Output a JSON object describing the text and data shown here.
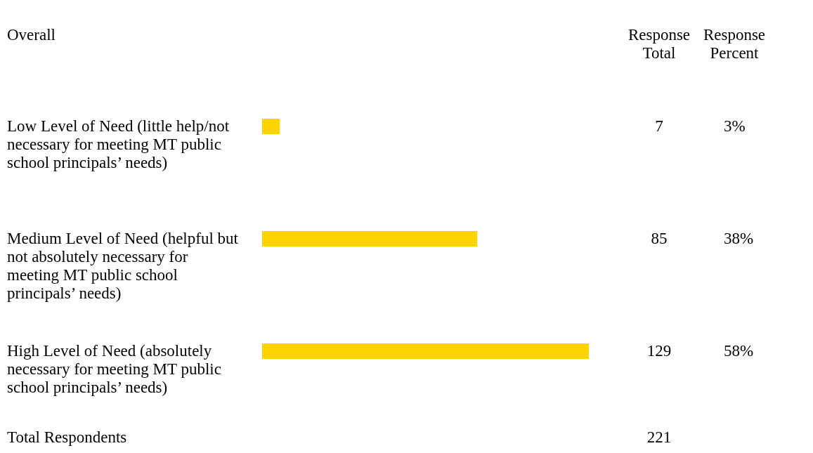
{
  "chart_data": {
    "type": "bar",
    "orientation": "horizontal",
    "title": "Overall",
    "categories": [
      "Low Level of Need (little help/not necessary for meeting MT public school principals’ needs)",
      "Medium Level of Need (helpful but not absolutely necessary for meeting MT public school principals’ needs)",
      "High Level of Need (absolutely necessary for meeting MT public school principals’ needs)"
    ],
    "values": [
      7,
      85,
      129
    ],
    "color": "#ffd400",
    "data_labels": true,
    "annotations": [
      "Response Total",
      "Response Percent",
      "3%",
      "38%",
      "58%",
      "Total Respondents",
      "221"
    ]
  }
}
